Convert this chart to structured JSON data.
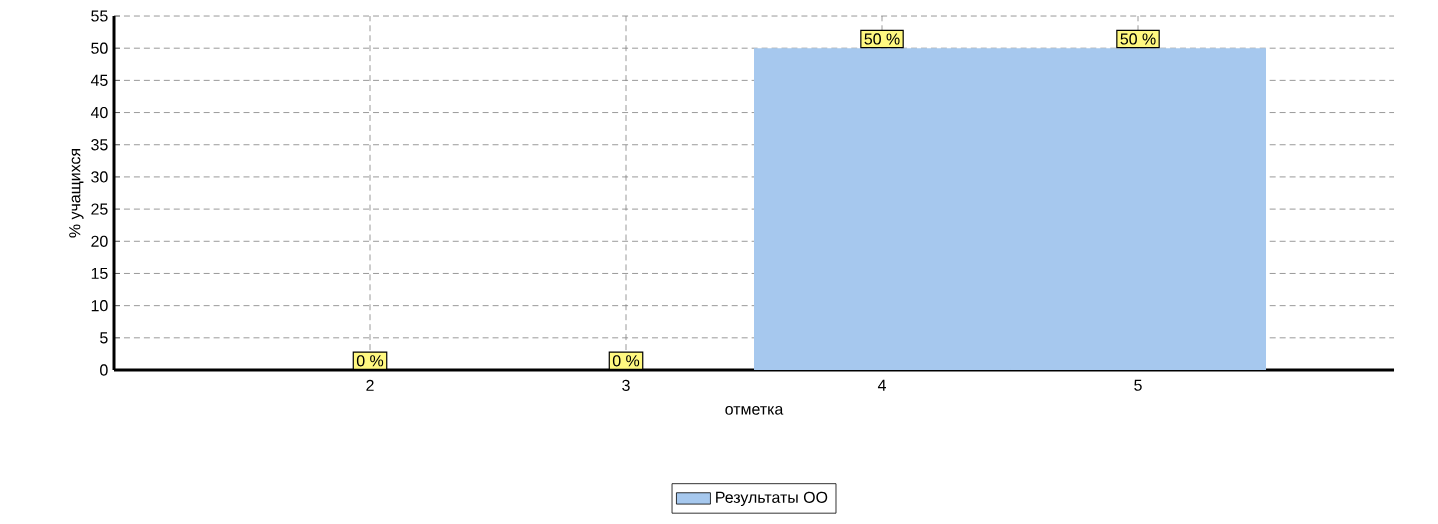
{
  "chart_data": {
    "type": "bar",
    "xlabel": "отметка",
    "ylabel": "% учащихся",
    "categories": [
      "2",
      "3",
      "4",
      "5"
    ],
    "series": [
      {
        "name": "Результаты ОО",
        "color": "#a6c8ee",
        "values": [
          0,
          0,
          50,
          50
        ],
        "value_labels": [
          "0 %",
          "0 %",
          "50 %",
          "50 %"
        ]
      }
    ],
    "ylim": [
      0,
      55
    ],
    "yticks": [
      0,
      5,
      10,
      15,
      20,
      25,
      30,
      35,
      40,
      45,
      50,
      55
    ],
    "grid": true,
    "legend": "bottom"
  }
}
